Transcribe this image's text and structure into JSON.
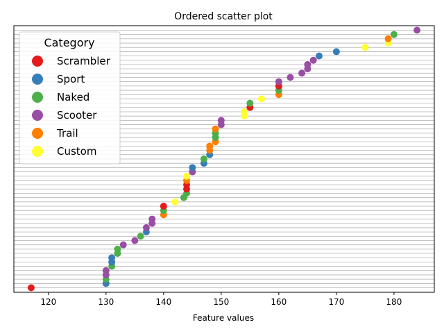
{
  "chart_data": {
    "type": "scatter",
    "title": "Ordered scatter plot",
    "xlabel": "Feature values",
    "ylabel": "",
    "xlim": [
      114,
      187
    ],
    "x_ticks": [
      120,
      130,
      140,
      150,
      160,
      170,
      180
    ],
    "grid": "horizontal lines at every point",
    "legend": {
      "title": "Category",
      "placement": "top-left",
      "entries": [
        {
          "name": "Scrambler",
          "color": "#e41a1c"
        },
        {
          "name": "Sport",
          "color": "#377eb8"
        },
        {
          "name": "Naked",
          "color": "#4daf4a"
        },
        {
          "name": "Scooter",
          "color": "#984ea3"
        },
        {
          "name": "Trail",
          "color": "#ff7f00"
        },
        {
          "name": "Custom",
          "color": "#ffff33"
        }
      ]
    },
    "points": [
      {
        "x": 117,
        "category": "Scrambler"
      },
      {
        "x": 130,
        "category": "Sport"
      },
      {
        "x": 130,
        "category": "Naked"
      },
      {
        "x": 130,
        "category": "Scooter"
      },
      {
        "x": 130,
        "category": "Scooter"
      },
      {
        "x": 131,
        "category": "Naked"
      },
      {
        "x": 131,
        "category": "Sport"
      },
      {
        "x": 131,
        "category": "Sport"
      },
      {
        "x": 132,
        "category": "Naked"
      },
      {
        "x": 132,
        "category": "Naked"
      },
      {
        "x": 133,
        "category": "Scooter"
      },
      {
        "x": 135,
        "category": "Scooter"
      },
      {
        "x": 136,
        "category": "Naked"
      },
      {
        "x": 137,
        "category": "Sport"
      },
      {
        "x": 137,
        "category": "Scooter"
      },
      {
        "x": 138,
        "category": "Scooter"
      },
      {
        "x": 138,
        "category": "Scooter"
      },
      {
        "x": 140,
        "category": "Trail"
      },
      {
        "x": 140,
        "category": "Naked"
      },
      {
        "x": 140,
        "category": "Scrambler"
      },
      {
        "x": 142,
        "category": "Custom"
      },
      {
        "x": 143.5,
        "category": "Naked"
      },
      {
        "x": 144,
        "category": "Naked"
      },
      {
        "x": 144,
        "category": "Scrambler"
      },
      {
        "x": 144,
        "category": "Scrambler"
      },
      {
        "x": 144,
        "category": "Trail"
      },
      {
        "x": 144,
        "category": "Custom"
      },
      {
        "x": 145,
        "category": "Scooter"
      },
      {
        "x": 145,
        "category": "Sport"
      },
      {
        "x": 147,
        "category": "Sport"
      },
      {
        "x": 147,
        "category": "Naked"
      },
      {
        "x": 148,
        "category": "Sport"
      },
      {
        "x": 148,
        "category": "Trail"
      },
      {
        "x": 148,
        "category": "Trail"
      },
      {
        "x": 149,
        "category": "Trail"
      },
      {
        "x": 149,
        "category": "Naked"
      },
      {
        "x": 149,
        "category": "Naked"
      },
      {
        "x": 149,
        "category": "Trail"
      },
      {
        "x": 150,
        "category": "Scooter"
      },
      {
        "x": 150,
        "category": "Scooter"
      },
      {
        "x": 154,
        "category": "Custom"
      },
      {
        "x": 154,
        "category": "Custom"
      },
      {
        "x": 155,
        "category": "Scrambler"
      },
      {
        "x": 155,
        "category": "Naked"
      },
      {
        "x": 157,
        "category": "Custom"
      },
      {
        "x": 160,
        "category": "Trail"
      },
      {
        "x": 160,
        "category": "Naked"
      },
      {
        "x": 160,
        "category": "Scrambler"
      },
      {
        "x": 160,
        "category": "Scooter"
      },
      {
        "x": 162,
        "category": "Scooter"
      },
      {
        "x": 164,
        "category": "Scooter"
      },
      {
        "x": 165,
        "category": "Scooter"
      },
      {
        "x": 165,
        "category": "Scooter"
      },
      {
        "x": 166,
        "category": "Scooter"
      },
      {
        "x": 167,
        "category": "Sport"
      },
      {
        "x": 170,
        "category": "Sport"
      },
      {
        "x": 175,
        "category": "Custom"
      },
      {
        "x": 179,
        "category": "Custom"
      },
      {
        "x": 179,
        "category": "Trail"
      },
      {
        "x": 180,
        "category": "Naked"
      },
      {
        "x": 184,
        "category": "Scooter"
      }
    ]
  }
}
